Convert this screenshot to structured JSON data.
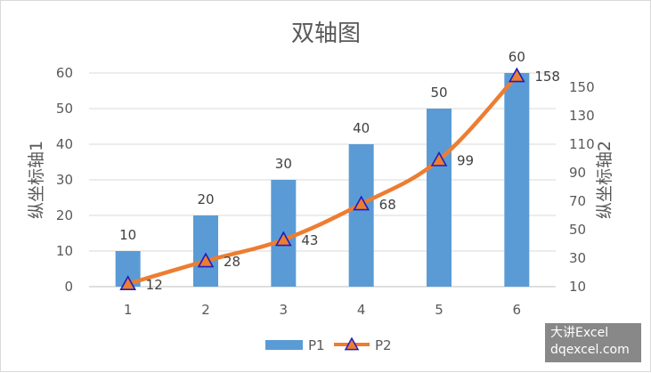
{
  "chart_data": {
    "type": "bar",
    "title": "双轴图",
    "categories": [
      "1",
      "2",
      "3",
      "4",
      "5",
      "6"
    ],
    "series": [
      {
        "name": "P1",
        "type": "bar",
        "axis": "left",
        "color": "#5b9bd5",
        "values": [
          10,
          20,
          30,
          40,
          50,
          60
        ]
      },
      {
        "name": "P2",
        "type": "line",
        "axis": "right",
        "color": "#ed7d31",
        "marker": "triangle",
        "marker_color": "#1f1fbf",
        "values": [
          12,
          28,
          43,
          68,
          99,
          158
        ]
      }
    ],
    "ylabel": "纵坐标轴1",
    "y2label": "纵坐标轴2",
    "ylim": [
      0,
      60
    ],
    "yticks": [
      0,
      10,
      20,
      30,
      40,
      50,
      60
    ],
    "y2lim": [
      10,
      160
    ],
    "y2ticks": [
      10,
      30,
      50,
      70,
      90,
      110,
      130,
      150
    ],
    "grid": "horizontal",
    "legend": "bottom"
  },
  "watermark": {
    "line1": "大讲Excel",
    "line2": "dqexcel.com"
  }
}
